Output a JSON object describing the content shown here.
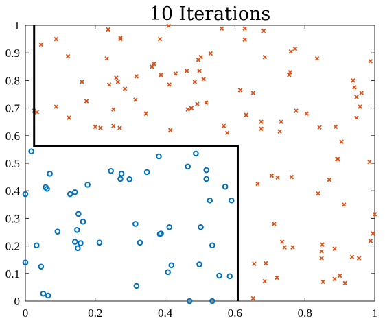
{
  "chart_data": {
    "type": "scatter",
    "title": "10 Iterations",
    "xlabel": "",
    "ylabel": "",
    "xlim": [
      0,
      1
    ],
    "ylim": [
      0,
      1
    ],
    "x_ticks": [
      "0",
      "0.2",
      "0.4",
      "0.6",
      "0.8",
      "1"
    ],
    "y_ticks": [
      "0",
      "0.1",
      "0.2",
      "0.3",
      "0.4",
      "0.5",
      "0.6",
      "0.7",
      "0.8",
      "0.9",
      "1"
    ],
    "grid": false,
    "legend": "none",
    "series": [
      {
        "marker": "circle",
        "color": "#0072BD",
        "points": [
          [
            0.017,
            0.543
          ],
          [
            0.0,
            0.388
          ],
          [
            0.0,
            0.14
          ],
          [
            0.032,
            0.202
          ],
          [
            0.045,
            0.125
          ],
          [
            0.051,
            0.027
          ],
          [
            0.065,
            0.02
          ],
          [
            0.058,
            0.413
          ],
          [
            0.062,
            0.407
          ],
          [
            0.07,
            0.462
          ],
          [
            0.092,
            0.252
          ],
          [
            0.128,
            0.388
          ],
          [
            0.142,
            0.395
          ],
          [
            0.142,
            0.215
          ],
          [
            0.148,
            0.258
          ],
          [
            0.152,
            0.316
          ],
          [
            0.15,
            0.192
          ],
          [
            0.158,
            0.21
          ],
          [
            0.165,
            0.288
          ],
          [
            0.178,
            0.422
          ],
          [
            0.212,
            0.212
          ],
          [
            0.245,
            0.472
          ],
          [
            0.272,
            0.443
          ],
          [
            0.275,
            0.462
          ],
          [
            0.298,
            0.442
          ],
          [
            0.315,
            0.28
          ],
          [
            0.318,
            0.055
          ],
          [
            0.328,
            0.212
          ],
          [
            0.348,
            0.468
          ],
          [
            0.382,
            0.525
          ],
          [
            0.385,
            0.243
          ],
          [
            0.388,
            0.245
          ],
          [
            0.408,
            0.105
          ],
          [
            0.412,
            0.268
          ],
          [
            0.418,
            0.13
          ],
          [
            0.465,
            0.488
          ],
          [
            0.47,
            0.0
          ],
          [
            0.488,
            0.535
          ],
          [
            0.498,
            0.133
          ],
          [
            0.502,
            0.268
          ],
          [
            0.518,
            0.475
          ],
          [
            0.518,
            0.443
          ],
          [
            0.528,
            0.365
          ],
          [
            0.535,
            0.0
          ],
          [
            0.535,
            0.202
          ],
          [
            0.555,
            0.092
          ],
          [
            0.572,
            0.415
          ],
          [
            0.585,
            0.09
          ],
          [
            0.59,
            0.365
          ]
        ]
      },
      {
        "marker": "x",
        "color": "#D95319",
        "points": [
          [
            0.025,
            0.69
          ],
          [
            0.033,
            0.685
          ],
          [
            0.045,
            0.93
          ],
          [
            0.088,
            0.95
          ],
          [
            0.088,
            0.705
          ],
          [
            0.122,
            0.888
          ],
          [
            0.125,
            0.665
          ],
          [
            0.162,
            0.795
          ],
          [
            0.175,
            0.725
          ],
          [
            0.2,
            0.632
          ],
          [
            0.215,
            0.628
          ],
          [
            0.233,
            0.88
          ],
          [
            0.237,
            0.985
          ],
          [
            0.24,
            0.785
          ],
          [
            0.252,
            0.635
          ],
          [
            0.252,
            0.695
          ],
          [
            0.26,
            0.81
          ],
          [
            0.265,
            0.795
          ],
          [
            0.27,
            0.628
          ],
          [
            0.272,
            0.95
          ],
          [
            0.272,
            0.955
          ],
          [
            0.285,
            0.77
          ],
          [
            0.315,
            0.73
          ],
          [
            0.318,
            0.815
          ],
          [
            0.345,
            0.68
          ],
          [
            0.362,
            0.85
          ],
          [
            0.368,
            0.86
          ],
          [
            0.385,
            0.95
          ],
          [
            0.388,
            0.82
          ],
          [
            0.41,
            0.998
          ],
          [
            0.412,
            0.785
          ],
          [
            0.415,
            0.62
          ],
          [
            0.43,
            0.825
          ],
          [
            0.462,
            0.835
          ],
          [
            0.465,
            0.695
          ],
          [
            0.475,
            0.7
          ],
          [
            0.485,
            0.795
          ],
          [
            0.492,
            0.715
          ],
          [
            0.495,
            0.875
          ],
          [
            0.498,
            0.835
          ],
          [
            0.502,
            0.885
          ],
          [
            0.51,
            0.805
          ],
          [
            0.518,
            0.72
          ],
          [
            0.53,
            0.898
          ],
          [
            0.562,
            0.988
          ],
          [
            0.568,
            0.635
          ],
          [
            0.578,
            0.61
          ],
          [
            0.615,
            0.765
          ],
          [
            0.628,
            0.988
          ],
          [
            0.628,
            0.948
          ],
          [
            0.632,
            0.675
          ],
          [
            0.652,
            0.755
          ],
          [
            0.652,
            0.01
          ],
          [
            0.655,
            0.135
          ],
          [
            0.665,
            0.425
          ],
          [
            0.675,
            0.65
          ],
          [
            0.675,
            0.625
          ],
          [
            0.682,
            0.98
          ],
          [
            0.685,
            0.885
          ],
          [
            0.685,
            0.072
          ],
          [
            0.688,
            0.137
          ],
          [
            0.705,
            0.455
          ],
          [
            0.712,
            0.28
          ],
          [
            0.72,
            0.085
          ],
          [
            0.722,
            0.448
          ],
          [
            0.728,
            0.615
          ],
          [
            0.732,
            0.65
          ],
          [
            0.735,
            0.215
          ],
          [
            0.742,
            0.195
          ],
          [
            0.755,
            0.82
          ],
          [
            0.76,
            0.905
          ],
          [
            0.758,
            0.83
          ],
          [
            0.762,
            0.45
          ],
          [
            0.765,
            0.195
          ],
          [
            0.772,
            0.915
          ],
          [
            0.775,
            0.69
          ],
          [
            0.805,
            0.68
          ],
          [
            0.835,
            0.88
          ],
          [
            0.838,
            0.39
          ],
          [
            0.842,
            0.63
          ],
          [
            0.848,
            0.155
          ],
          [
            0.848,
            0.18
          ],
          [
            0.85,
            0.205
          ],
          [
            0.852,
            0.07
          ],
          [
            0.87,
            0.44
          ],
          [
            0.885,
            0.08
          ],
          [
            0.885,
            0.19
          ],
          [
            0.888,
            0.632
          ],
          [
            0.892,
            0.515
          ],
          [
            0.895,
            0.515
          ],
          [
            0.9,
            0.092
          ],
          [
            0.905,
            0.578
          ],
          [
            0.912,
            0.35
          ],
          [
            0.915,
            0.065
          ],
          [
            0.935,
            0.16
          ],
          [
            0.938,
            0.8
          ],
          [
            0.942,
            0.775
          ],
          [
            0.948,
            0.665
          ],
          [
            0.948,
            0.74
          ],
          [
            0.955,
            0.155
          ],
          [
            0.958,
            0.705
          ],
          [
            0.962,
            0.755
          ],
          [
            0.985,
            0.505
          ],
          [
            0.988,
            0.87
          ],
          [
            0.988,
            0.218
          ],
          [
            0.995,
            0.245
          ],
          [
            1.0,
            0.315
          ]
        ]
      }
    ],
    "annotations": [
      {
        "type": "decision-boundary",
        "color": "#000000",
        "points": [
          [
            0.025,
            1.0
          ],
          [
            0.025,
            0.562
          ],
          [
            0.608,
            0.562
          ],
          [
            0.608,
            0.0
          ]
        ]
      }
    ]
  }
}
